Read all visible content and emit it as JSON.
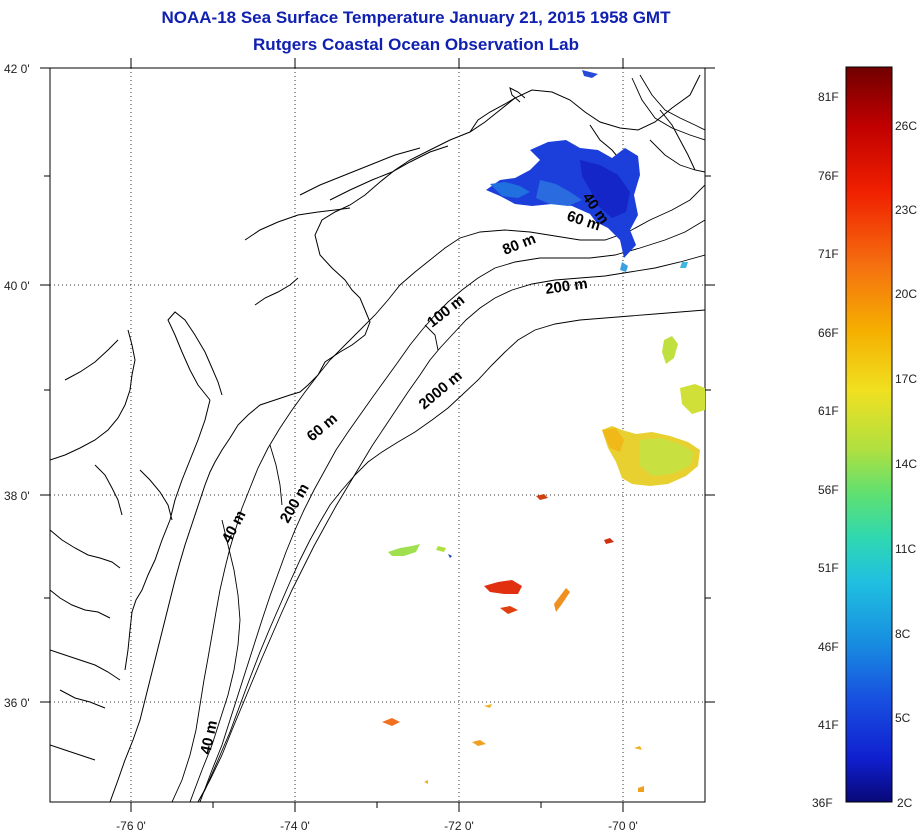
{
  "title_line1": "NOAA-18 Sea Surface Temperature January 21, 2015 1958 GMT",
  "title_line2": "Rutgers Coastal Ocean Observation Lab",
  "map": {
    "lon_ticks": [
      "-76 0'",
      "-74 0'",
      "-72 0'",
      "-70 0'"
    ],
    "lat_ticks": [
      "42 0'",
      "40 0'",
      "38 0'",
      "36 0'"
    ],
    "contour_labels": [
      "40 m",
      "60 m",
      "80 m",
      "200 m",
      "100 m",
      "2000 m",
      "60 m",
      "40 m",
      "200 m",
      "40 m"
    ],
    "grid": "dotted"
  },
  "colorbar": {
    "fahrenheit_labels": [
      "81F",
      "76F",
      "71F",
      "66F",
      "61F",
      "56F",
      "51F",
      "46F",
      "41F",
      "36F"
    ],
    "celsius_labels": [
      "26C",
      "23C",
      "20C",
      "17C",
      "14C",
      "11C",
      "8C",
      "5C",
      "2C"
    ],
    "colors": [
      "#7a0000",
      "#c80000",
      "#f03000",
      "#f57a10",
      "#f5b800",
      "#f0e020",
      "#c8e040",
      "#80e060",
      "#40d8a0",
      "#20c8d8",
      "#1890e0",
      "#1850e0",
      "#1020d0",
      "#0a0a90"
    ]
  }
}
